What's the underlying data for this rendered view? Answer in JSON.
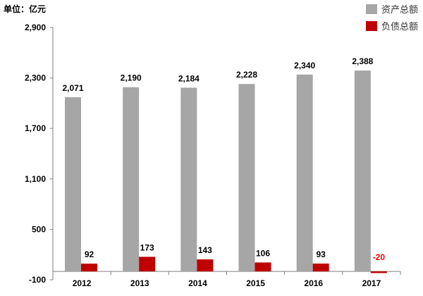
{
  "chart_data": {
    "type": "bar",
    "unit_label": "单位：亿元",
    "categories": [
      "2012",
      "2013",
      "2014",
      "2015",
      "2016",
      "2017"
    ],
    "series": [
      {
        "name": "资产总额",
        "color": "#a6a6a6",
        "label_color": "#000000",
        "values": [
          2071,
          2190,
          2184,
          2228,
          2340,
          2388
        ]
      },
      {
        "name": "负债总额",
        "color": "#c00000",
        "label_color": "#000000",
        "negative_label_color": "#ff0000",
        "values": [
          92,
          173,
          143,
          106,
          93,
          -20
        ]
      }
    ],
    "ylim": [
      -100,
      2900
    ],
    "yticks": [
      -100,
      500,
      1100,
      1700,
      2300,
      2900
    ],
    "ytick_labels": [
      "-100",
      "500",
      "1,100",
      "1,700",
      "2,300",
      "2,900"
    ],
    "legend_position": "top-right",
    "grid": false
  }
}
